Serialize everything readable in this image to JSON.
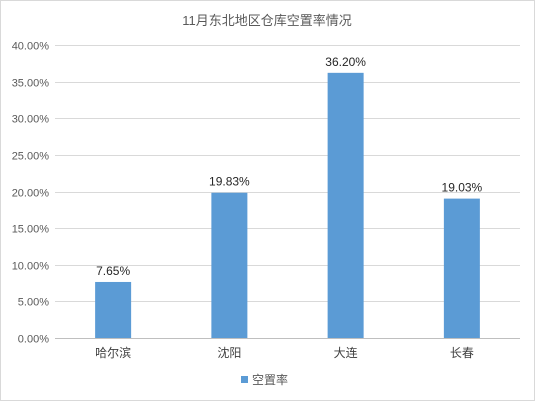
{
  "chart_data": {
    "type": "bar",
    "title": "11月东北地区仓库空置率情况",
    "categories": [
      "哈尔滨",
      "沈阳",
      "大连",
      "长春"
    ],
    "series": [
      {
        "name": "空置率",
        "values": [
          7.65,
          19.83,
          36.2,
          19.03
        ],
        "labels": [
          "7.65%",
          "19.83%",
          "36.20%",
          "19.03%"
        ],
        "color": "#5B9BD5"
      }
    ],
    "y_unit": "percent",
    "ylim": [
      0,
      40
    ],
    "yticks": [
      "0.00%",
      "5.00%",
      "10.00%",
      "15.00%",
      "20.00%",
      "25.00%",
      "30.00%",
      "35.00%",
      "40.00%"
    ],
    "grid": true,
    "legend_position": "bottom"
  }
}
